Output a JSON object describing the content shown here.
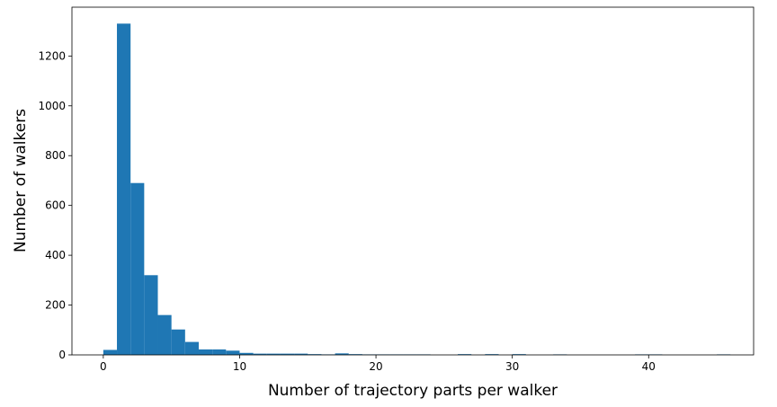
{
  "chart_data": {
    "type": "histogram",
    "xlabel": "Number of trajectory parts per walker",
    "ylabel": "Number of walkers",
    "color": "#1f77b4",
    "bins": [
      0,
      1,
      2,
      3,
      4,
      5,
      6,
      7,
      8,
      9,
      10,
      11,
      12,
      13,
      14,
      15,
      16,
      17,
      18,
      19,
      20,
      21,
      22,
      23,
      24,
      25,
      26,
      27,
      28,
      29,
      30,
      31,
      32,
      33,
      34,
      35,
      36,
      37,
      38,
      39,
      40,
      41,
      42,
      43,
      44,
      45,
      46
    ],
    "counts": [
      20,
      1330,
      690,
      320,
      160,
      102,
      52,
      22,
      22,
      17,
      8,
      5,
      5,
      5,
      5,
      3,
      2,
      6,
      3,
      2,
      2,
      2,
      2,
      2,
      0,
      0,
      3,
      0,
      3,
      0,
      3,
      0,
      0,
      2,
      0,
      0,
      0,
      0,
      0,
      2,
      2,
      0,
      0,
      0,
      0,
      2
    ],
    "xlim": [
      -2.3,
      47.7
    ],
    "ylim": [
      0,
      1396
    ],
    "xticks": [
      0,
      10,
      20,
      30,
      40
    ],
    "yticks": [
      0,
      200,
      400,
      600,
      800,
      1000,
      1200
    ]
  }
}
